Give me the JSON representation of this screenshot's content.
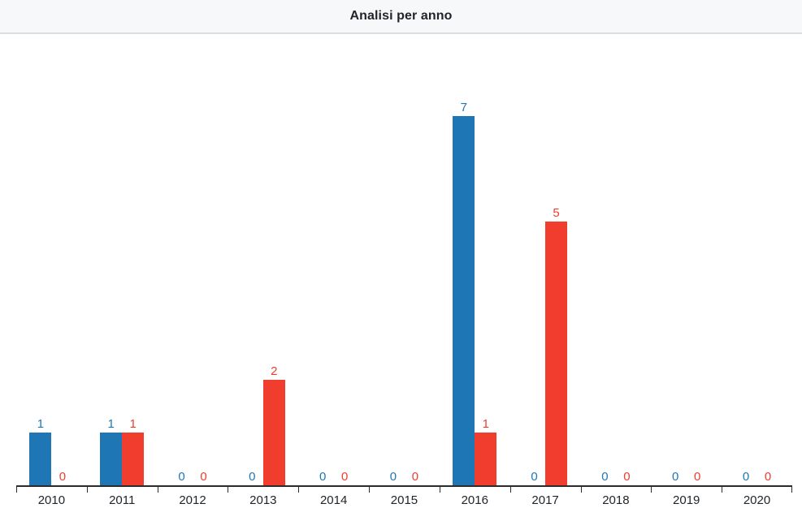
{
  "header": {
    "title": "Analisi per anno"
  },
  "chart_data": {
    "type": "bar",
    "title": "Analisi per anno",
    "categories": [
      "2010",
      "2011",
      "2012",
      "2013",
      "2014",
      "2015",
      "2016",
      "2017",
      "2018",
      "2019",
      "2020"
    ],
    "series": [
      {
        "name": "series-blue",
        "color": "#1f76b4",
        "values": [
          1,
          1,
          0,
          0,
          0,
          0,
          7,
          0,
          0,
          0,
          0
        ]
      },
      {
        "name": "series-red",
        "color": "#f03d2e",
        "values": [
          0,
          1,
          0,
          2,
          0,
          0,
          1,
          5,
          0,
          0,
          0
        ]
      }
    ],
    "value_labels": true,
    "xlabel": "",
    "ylabel": "",
    "ylim": [
      0,
      8.5
    ],
    "grid": false,
    "legend_position": "none",
    "axis_color": "#2b2b2b"
  },
  "style": {
    "header_bg": "#f7f8f9",
    "header_border": "#dadde1",
    "title_color": "#212529",
    "tick_label_color": "#212529"
  }
}
